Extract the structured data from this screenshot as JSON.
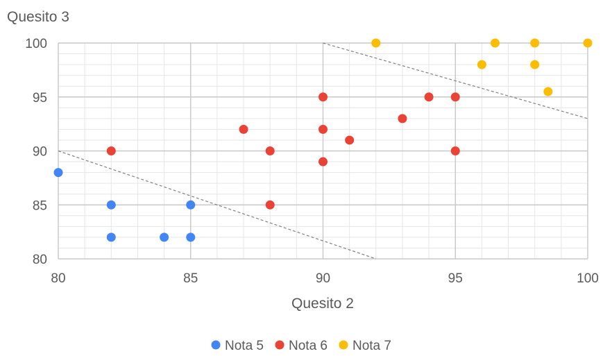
{
  "chart_data": {
    "type": "scatter",
    "xlabel": "Quesito 2",
    "ylabel": "Quesito 3",
    "xlim": [
      80,
      100
    ],
    "ylim": [
      80,
      100
    ],
    "x_ticks": [
      80,
      85,
      90,
      95,
      100
    ],
    "y_ticks": [
      80,
      85,
      90,
      95,
      100
    ],
    "grid": true,
    "legend_position": "bottom",
    "series": [
      {
        "name": "Nota 5",
        "color": "#4285f4",
        "points": [
          [
            80,
            88
          ],
          [
            82,
            85
          ],
          [
            82,
            82
          ],
          [
            84,
            82
          ],
          [
            85,
            85
          ],
          [
            85,
            82
          ]
        ]
      },
      {
        "name": "Nota 6",
        "color": "#ea4335",
        "points": [
          [
            82,
            90
          ],
          [
            87,
            92
          ],
          [
            88,
            90
          ],
          [
            88,
            85
          ],
          [
            90,
            95
          ],
          [
            90,
            92
          ],
          [
            90,
            89
          ],
          [
            91,
            91
          ],
          [
            93,
            93
          ],
          [
            94,
            95
          ],
          [
            95,
            95
          ],
          [
            95,
            90
          ]
        ]
      },
      {
        "name": "Nota 7",
        "color": "#fbbc04",
        "points": [
          [
            92,
            100
          ],
          [
            96.5,
            100
          ],
          [
            98,
            100
          ],
          [
            100,
            100
          ],
          [
            96,
            98
          ],
          [
            98,
            98
          ],
          [
            98.5,
            95.5
          ]
        ]
      }
    ],
    "boundary_lines": [
      {
        "from": [
          80,
          90
        ],
        "to": [
          92,
          80
        ]
      },
      {
        "from": [
          90,
          100
        ],
        "to": [
          100,
          93
        ]
      }
    ]
  }
}
